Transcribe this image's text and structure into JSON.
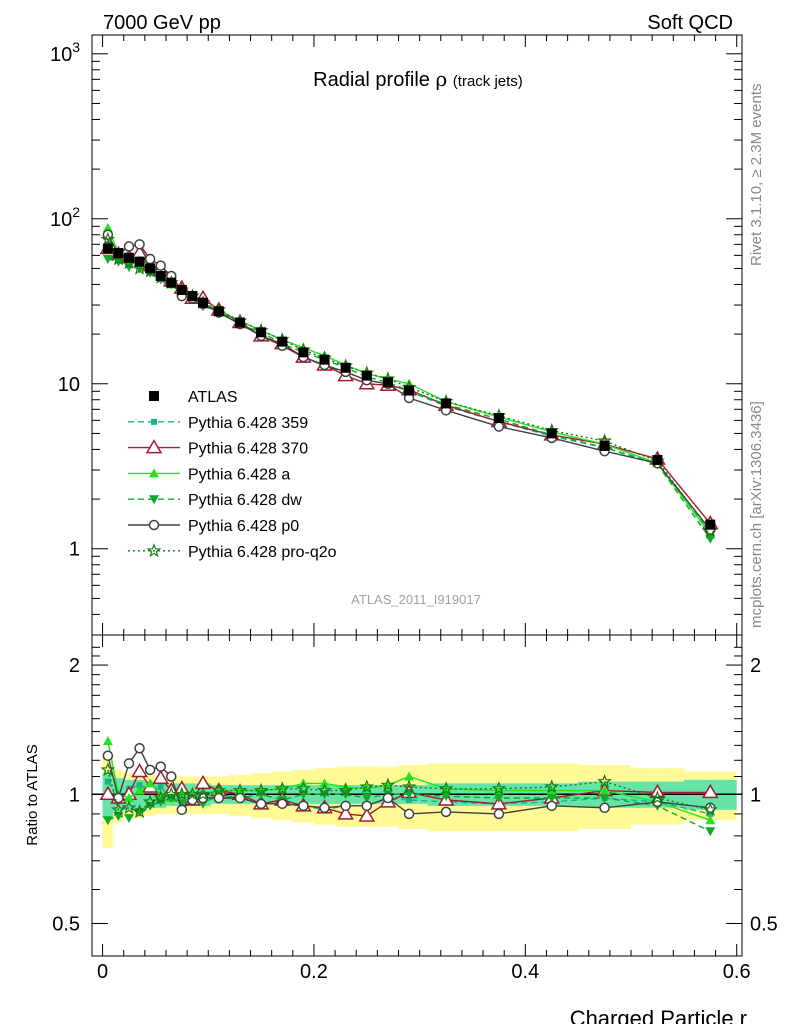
{
  "header": {
    "left": "7000 GeV pp",
    "right": "Soft QCD"
  },
  "side_labels": {
    "rivet": "Rivet 3.1.10, ≥ 2.3M events",
    "mcplots": "mcplots.cern.ch [arXiv:1306.3436]"
  },
  "analysis_id": "ATLAS_2011_I919017",
  "chart_data": [
    {
      "type": "line",
      "title": "Radial profile",
      "title_symbol": "ρ",
      "title_suffix": "(track jets)",
      "xlabel": "Charged Particle r",
      "ylabel": "",
      "yscale": "log",
      "xlim": [
        -0.01,
        0.605
      ],
      "ylim": [
        0.3,
        1300
      ],
      "x_ticks": [
        "0",
        "0.2",
        "0.4",
        "0.6"
      ],
      "y_ticks": [
        "1",
        "10",
        "10²",
        "10³"
      ],
      "legend_position": "middle-left",
      "x": [
        0.005,
        0.015,
        0.025,
        0.035,
        0.045,
        0.055,
        0.065,
        0.075,
        0.085,
        0.095,
        0.11,
        0.13,
        0.15,
        0.17,
        0.19,
        0.21,
        0.23,
        0.25,
        0.27,
        0.29,
        0.325,
        0.375,
        0.425,
        0.475,
        0.525,
        0.575
      ],
      "series": [
        {
          "name": "ATLAS",
          "color": "#000000",
          "marker": "filled-square",
          "line": "none",
          "values": [
            66,
            62,
            58,
            55,
            50,
            45,
            41,
            37,
            34,
            31,
            27.5,
            23.5,
            20.5,
            18,
            15.5,
            14,
            12.5,
            11.2,
            10.2,
            9.1,
            7.6,
            6.2,
            5.0,
            4.2,
            3.45,
            1.4
          ]
        },
        {
          "name": "Pythia 6.428 359",
          "color": "#1bb38c",
          "marker": "small-square",
          "line": "dashed",
          "values": [
            70,
            60,
            60,
            58,
            52,
            47,
            40,
            36,
            34,
            31,
            27,
            23,
            19.5,
            17,
            14.5,
            12.8,
            11.8,
            10.5,
            10,
            9,
            7.3,
            5.9,
            4.8,
            4.1,
            3.3,
            1.25
          ]
        },
        {
          "name": "Pythia 6.428 370",
          "color": "#a01c30",
          "marker": "open-triangle",
          "line": "solid",
          "values": [
            66,
            61,
            58,
            62,
            52,
            49,
            42,
            38,
            33,
            33,
            28,
            23.5,
            19.5,
            17.5,
            14.5,
            13,
            11.2,
            10,
            9.8,
            9.2,
            7.4,
            5.9,
            4.9,
            4.3,
            3.5,
            1.42
          ]
        },
        {
          "name": "Pythia 6.428 a",
          "color": "#22e31f",
          "marker": "filled-triangle",
          "line": "solid",
          "values": [
            88,
            62,
            57,
            56,
            53,
            45,
            40,
            37,
            34,
            30.5,
            28,
            24,
            21,
            18.5,
            16.5,
            14.8,
            13,
            11.5,
            10.7,
            10,
            7.8,
            6.3,
            5.1,
            4.3,
            3.3,
            1.22
          ]
        },
        {
          "name": "Pythia 6.428 dw",
          "color": "#12a82c",
          "marker": "filled-triangle-down",
          "line": "dashed",
          "values": [
            57,
            55,
            51,
            50,
            47,
            43,
            40,
            35,
            33,
            29.5,
            27.5,
            23,
            20.5,
            17.5,
            15.5,
            14,
            12.5,
            11,
            10.2,
            9.1,
            7.5,
            6.1,
            4.9,
            4.1,
            3.25,
            1.15
          ]
        },
        {
          "name": "Pythia 6.428 p0",
          "color": "#404040",
          "marker": "open-circle",
          "line": "solid",
          "values": [
            80,
            61,
            68,
            70,
            57,
            52,
            45,
            34,
            33,
            30.5,
            27,
            23,
            19.5,
            17,
            14.5,
            13,
            11.8,
            10.5,
            10,
            8.2,
            6.9,
            5.5,
            4.7,
            3.9,
            3.3,
            1.3
          ]
        },
        {
          "name": "Pythia 6.428 pro-q2o",
          "color": "#1a7a14",
          "marker": "open-star",
          "line": "dotted",
          "values": [
            75,
            57,
            54,
            50,
            48,
            44,
            41,
            37,
            34,
            31,
            28,
            24,
            21,
            18.5,
            16,
            14.3,
            12.8,
            11.6,
            10.7,
            9.5,
            7.8,
            6.4,
            5.2,
            4.5,
            3.4,
            1.28
          ]
        }
      ]
    },
    {
      "type": "line",
      "title": "",
      "xlabel": "Charged Particle r",
      "ylabel": "Ratio to ATLAS",
      "yscale": "log",
      "xlim": [
        -0.01,
        0.605
      ],
      "ylim": [
        0.42,
        2.35
      ],
      "y_ticks": [
        "0.5",
        "1",
        "2"
      ],
      "reference_line": 1,
      "bands": [
        {
          "name": "inner",
          "color": "#66e3a6",
          "half_width": [
            0.12,
            0.09,
            0.08,
            0.08,
            0.07,
            0.07,
            0.06,
            0.06,
            0.06,
            0.06,
            0.05,
            0.05,
            0.05,
            0.05,
            0.05,
            0.05,
            0.05,
            0.05,
            0.05,
            0.05,
            0.06,
            0.06,
            0.06,
            0.07,
            0.07,
            0.08
          ]
        },
        {
          "name": "outer",
          "color": "#fffa96",
          "half_width": [
            0.25,
            0.14,
            0.12,
            0.12,
            0.11,
            0.1,
            0.1,
            0.1,
            0.1,
            0.1,
            0.1,
            0.11,
            0.12,
            0.13,
            0.14,
            0.15,
            0.16,
            0.16,
            0.16,
            0.17,
            0.18,
            0.18,
            0.18,
            0.17,
            0.15,
            0.13
          ]
        }
      ],
      "x": [
        0.005,
        0.015,
        0.025,
        0.035,
        0.045,
        0.055,
        0.065,
        0.075,
        0.085,
        0.095,
        0.11,
        0.13,
        0.15,
        0.17,
        0.19,
        0.21,
        0.23,
        0.25,
        0.27,
        0.29,
        0.325,
        0.375,
        0.425,
        0.475,
        0.525,
        0.575
      ],
      "series": [
        {
          "name": "Pythia 6.428 359",
          "color": "#1bb38c",
          "marker": "small-square",
          "line": "dashed",
          "values": [
            1.07,
            0.97,
            1.03,
            1.05,
            1.03,
            1.04,
            0.98,
            0.97,
            1.0,
            1.0,
            0.98,
            0.98,
            0.95,
            0.95,
            0.94,
            0.92,
            0.94,
            0.94,
            0.98,
            0.97,
            0.96,
            0.95,
            0.96,
            0.98,
            0.96,
            0.9
          ]
        },
        {
          "name": "Pythia 6.428 370",
          "color": "#a01c30",
          "marker": "open-triangle",
          "line": "solid",
          "values": [
            1.0,
            0.98,
            1.0,
            1.13,
            1.04,
            1.09,
            1.02,
            1.03,
            0.97,
            1.06,
            1.02,
            1.0,
            0.95,
            0.97,
            0.94,
            0.93,
            0.9,
            0.89,
            0.96,
            1.01,
            0.97,
            0.95,
            0.98,
            1.02,
            1.01,
            1.01
          ]
        },
        {
          "name": "Pythia 6.428 a",
          "color": "#22e31f",
          "marker": "filled-triangle",
          "line": "solid",
          "values": [
            1.33,
            1.0,
            0.98,
            1.02,
            1.06,
            1.0,
            0.98,
            1.0,
            1.0,
            0.98,
            1.02,
            1.02,
            1.02,
            1.03,
            1.06,
            1.06,
            1.04,
            1.03,
            1.05,
            1.1,
            1.03,
            1.02,
            1.02,
            1.02,
            0.96,
            0.87
          ]
        },
        {
          "name": "Pythia 6.428 dw",
          "color": "#12a82c",
          "marker": "filled-triangle-down",
          "line": "dashed",
          "values": [
            0.87,
            0.89,
            0.88,
            0.91,
            0.94,
            0.96,
            0.98,
            0.95,
            0.97,
            0.95,
            1.0,
            0.98,
            1.0,
            0.97,
            1.0,
            1.0,
            1.0,
            0.98,
            1.0,
            1.0,
            0.99,
            0.98,
            0.98,
            0.98,
            0.94,
            0.82
          ]
        },
        {
          "name": "Pythia 6.428 p0",
          "color": "#404040",
          "marker": "open-circle",
          "line": "solid",
          "values": [
            1.23,
            0.98,
            1.18,
            1.28,
            1.14,
            1.16,
            1.1,
            0.92,
            0.97,
            0.98,
            0.98,
            0.98,
            0.95,
            0.95,
            0.94,
            0.93,
            0.94,
            0.94,
            0.98,
            0.9,
            0.91,
            0.9,
            0.94,
            0.93,
            0.96,
            0.93
          ]
        },
        {
          "name": "Pythia 6.428 pro-q2o",
          "color": "#1a7a14",
          "marker": "open-star",
          "line": "dotted",
          "values": [
            1.14,
            0.92,
            0.93,
            0.91,
            0.96,
            0.98,
            1.0,
            1.0,
            1.0,
            1.0,
            1.02,
            1.02,
            1.02,
            1.03,
            1.03,
            1.02,
            1.02,
            1.04,
            1.05,
            1.04,
            1.03,
            1.03,
            1.04,
            1.07,
            0.98,
            0.92
          ]
        }
      ]
    }
  ]
}
